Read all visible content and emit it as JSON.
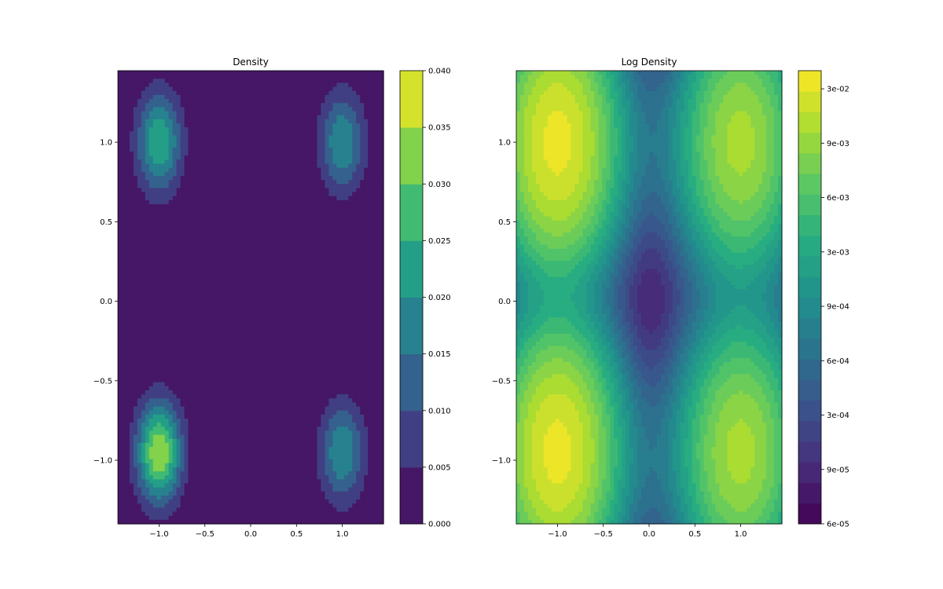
{
  "chart_data": [
    {
      "type": "contour",
      "title": "Density",
      "xlabel": "",
      "ylabel": "",
      "xlim": [
        -1.45,
        1.45
      ],
      "ylim": [
        -1.4,
        1.45
      ],
      "x_ticks": [
        "−1.0",
        "−0.5",
        "0.0",
        "0.5",
        "1.0"
      ],
      "y_ticks": [
        "−1.0",
        "−0.5",
        "0.0",
        "0.5",
        "1.0"
      ],
      "colorbar": {
        "scale": "linear",
        "range": [
          0.0,
          0.04
        ],
        "levels": [
          0.0,
          0.005,
          0.01,
          0.015,
          0.02,
          0.025,
          0.03,
          0.035,
          0.04
        ],
        "tick_labels": [
          "0.000",
          "0.005",
          "0.010",
          "0.015",
          "0.020",
          "0.025",
          "0.030",
          "0.035",
          "0.040"
        ]
      },
      "colormap": "viridis",
      "peaks": [
        {
          "x": -1.0,
          "y": 1.0,
          "peak_density": 0.025
        },
        {
          "x": 1.0,
          "y": 1.0,
          "peak_density": 0.02
        },
        {
          "x": -1.0,
          "y": -0.95,
          "peak_density": 0.035
        },
        {
          "x": 1.0,
          "y": -0.95,
          "peak_density": 0.02
        }
      ]
    },
    {
      "type": "contour",
      "title": "Log Density",
      "xlabel": "",
      "ylabel": "",
      "xlim": [
        -1.45,
        1.45
      ],
      "ylim": [
        -1.4,
        1.45
      ],
      "x_ticks": [
        "−1.0",
        "−0.5",
        "0.0",
        "0.5",
        "1.0"
      ],
      "y_ticks": [
        "−1.0",
        "−0.5",
        "0.0",
        "0.5",
        "1.0"
      ],
      "colorbar": {
        "scale": "log",
        "range": [
          6e-05,
          0.05
        ],
        "tick_labels": [
          "6e-05",
          "9e-05",
          "3e-04",
          "6e-04",
          "9e-04",
          "3e-03",
          "6e-03",
          "9e-03",
          "3e-02"
        ]
      },
      "colormap": "viridis",
      "peaks": [
        {
          "x": -1.0,
          "y": 1.0,
          "peak_density": 0.04
        },
        {
          "x": 1.0,
          "y": 1.0,
          "peak_density": 0.02
        },
        {
          "x": -1.0,
          "y": -0.95,
          "peak_density": 0.04
        },
        {
          "x": 1.0,
          "y": -0.95,
          "peak_density": 0.02
        }
      ]
    }
  ]
}
